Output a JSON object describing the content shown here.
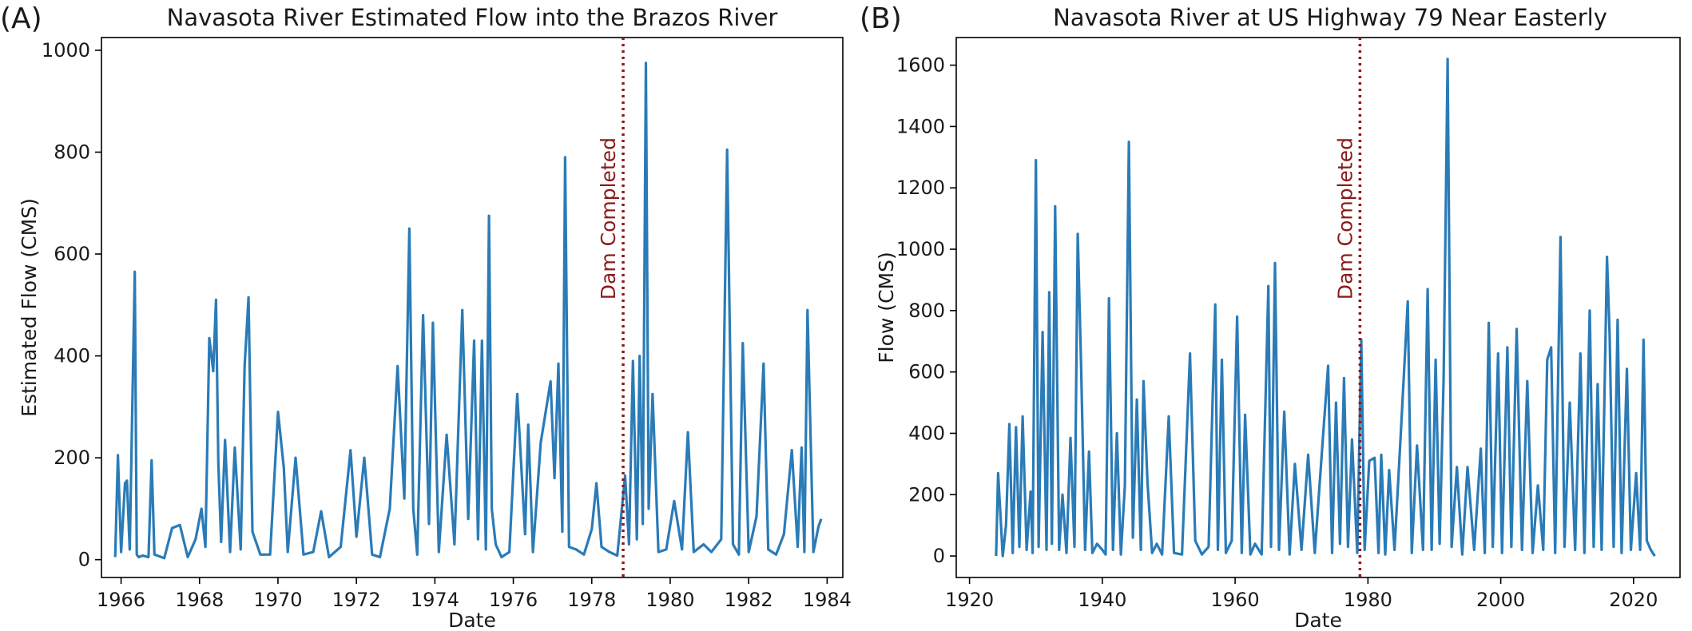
{
  "panels": [
    {
      "panel_label": "(A)",
      "colors": {
        "line": "#2a7bb7",
        "marker": "#8b1a1a"
      }
    },
    {
      "panel_label": "(B)",
      "colors": {
        "line": "#2a7bb7",
        "marker": "#8b1a1a"
      }
    }
  ],
  "chart_data": [
    {
      "type": "line",
      "title": "Navasota River Estimated Flow into the Brazos River",
      "xlabel": "Date",
      "ylabel": "Estimated Flow (CMS)",
      "xlim": [
        1965.5,
        1984.4
      ],
      "ylim": [
        -35,
        1025
      ],
      "xticks": [
        1966,
        1968,
        1970,
        1972,
        1974,
        1976,
        1978,
        1980,
        1982,
        1984
      ],
      "yticks": [
        0,
        200,
        400,
        600,
        800,
        1000
      ],
      "grid": false,
      "legend": "none",
      "annotation": {
        "text": "Dam Completed",
        "x": 1978.8
      },
      "series": [
        {
          "x": [
            1965.85,
            1965.92,
            1966.0,
            1966.1,
            1966.15,
            1966.22,
            1966.35,
            1966.4,
            1966.45,
            1966.55,
            1966.7,
            1966.78,
            1966.85,
            1967.1,
            1967.3,
            1967.5,
            1967.7,
            1967.9,
            1968.05,
            1968.15,
            1968.25,
            1968.35,
            1968.42,
            1968.48,
            1968.55,
            1968.65,
            1968.78,
            1968.9,
            1969.05,
            1969.15,
            1969.25,
            1969.35,
            1969.55,
            1969.8,
            1970.0,
            1970.15,
            1970.25,
            1970.45,
            1970.65,
            1970.9,
            1971.1,
            1971.3,
            1971.6,
            1971.85,
            1972.0,
            1972.2,
            1972.4,
            1972.6,
            1972.85,
            1973.05,
            1973.22,
            1973.35,
            1973.45,
            1973.55,
            1973.7,
            1973.85,
            1973.95,
            1974.1,
            1974.3,
            1974.5,
            1974.7,
            1974.85,
            1975.0,
            1975.1,
            1975.2,
            1975.3,
            1975.38,
            1975.45,
            1975.55,
            1975.7,
            1975.9,
            1976.1,
            1976.3,
            1976.38,
            1976.5,
            1976.7,
            1976.95,
            1977.05,
            1977.15,
            1977.25,
            1977.32,
            1977.42,
            1977.6,
            1977.8,
            1978.0,
            1978.12,
            1978.25,
            1978.45,
            1978.65,
            1978.85,
            1978.95,
            1979.05,
            1979.15,
            1979.22,
            1979.3,
            1979.38,
            1979.45,
            1979.55,
            1979.7,
            1979.9,
            1980.1,
            1980.3,
            1980.45,
            1980.6,
            1980.85,
            1981.05,
            1981.3,
            1981.45,
            1981.6,
            1981.75,
            1981.85,
            1982.0,
            1982.2,
            1982.38,
            1982.5,
            1982.7,
            1982.9,
            1983.1,
            1983.25,
            1983.35,
            1983.42,
            1983.5,
            1983.65,
            1983.78,
            1983.85
          ],
          "y": [
            5,
            205,
            15,
            150,
            155,
            20,
            565,
            10,
            5,
            8,
            5,
            195,
            10,
            3,
            62,
            68,
            5,
            40,
            100,
            25,
            435,
            370,
            510,
            190,
            35,
            235,
            15,
            220,
            20,
            380,
            515,
            55,
            10,
            10,
            290,
            180,
            15,
            200,
            10,
            15,
            95,
            5,
            25,
            215,
            45,
            200,
            10,
            5,
            100,
            380,
            120,
            650,
            100,
            10,
            480,
            70,
            465,
            15,
            245,
            30,
            490,
            80,
            430,
            40,
            430,
            20,
            675,
            100,
            30,
            5,
            15,
            325,
            50,
            265,
            15,
            230,
            350,
            160,
            385,
            55,
            790,
            25,
            20,
            10,
            60,
            150,
            25,
            15,
            8,
            165,
            30,
            390,
            40,
            400,
            70,
            975,
            100,
            325,
            15,
            20,
            115,
            20,
            250,
            15,
            30,
            15,
            40,
            805,
            30,
            10,
            425,
            15,
            85,
            385,
            20,
            10,
            50,
            215,
            25,
            220,
            15,
            490,
            15,
            65,
            80
          ]
        }
      ]
    },
    {
      "type": "line",
      "title": "Navasota River at US Highway 79 Near Easterly",
      "xlabel": "Date",
      "ylabel": "Flow (CMS)",
      "xlim": [
        1918,
        2027
      ],
      "ylim": [
        -70,
        1690
      ],
      "xticks": [
        1920,
        1940,
        1960,
        1980,
        2000,
        2020
      ],
      "yticks": [
        0,
        200,
        400,
        600,
        800,
        1000,
        1200,
        1400,
        1600
      ],
      "grid": false,
      "legend": "none",
      "annotation": {
        "text": "Dam Completed",
        "x": 1978.8
      },
      "series": [
        {
          "x": [
            1924.0,
            1924.3,
            1925.0,
            1925.5,
            1926.0,
            1926.5,
            1927.0,
            1927.5,
            1928.0,
            1928.6,
            1929.2,
            1929.5,
            1930.0,
            1930.4,
            1931.0,
            1931.6,
            1932.0,
            1932.4,
            1932.9,
            1933.5,
            1934.0,
            1934.6,
            1935.2,
            1935.8,
            1936.3,
            1936.8,
            1937.4,
            1938.0,
            1938.5,
            1939.2,
            1940.0,
            1940.5,
            1941.0,
            1941.6,
            1942.2,
            1942.8,
            1943.4,
            1944.0,
            1944.6,
            1945.2,
            1945.8,
            1946.2,
            1946.8,
            1947.5,
            1948.2,
            1949.0,
            1950.0,
            1950.8,
            1952.0,
            1953.2,
            1954.0,
            1955.0,
            1956.0,
            1957.0,
            1957.4,
            1958.0,
            1958.6,
            1959.5,
            1960.3,
            1961.0,
            1961.5,
            1962.3,
            1963.0,
            1964.0,
            1965.0,
            1965.4,
            1966.0,
            1966.6,
            1967.4,
            1968.2,
            1969.0,
            1970.0,
            1971.0,
            1972.0,
            1973.0,
            1974.0,
            1974.6,
            1975.2,
            1975.8,
            1976.4,
            1977.0,
            1977.6,
            1978.4,
            1979.0,
            1979.5,
            1980.2,
            1981.0,
            1981.6,
            1982.0,
            1982.6,
            1983.2,
            1984.0,
            1985.0,
            1986.0,
            1986.6,
            1987.4,
            1988.3,
            1989.0,
            1989.6,
            1990.2,
            1990.8,
            1991.4,
            1992.0,
            1992.6,
            1993.4,
            1994.2,
            1995.0,
            1996.0,
            1997.0,
            1997.6,
            1998.2,
            1998.8,
            1999.6,
            2000.2,
            2001.0,
            2001.6,
            2002.4,
            2003.2,
            2004.0,
            2004.8,
            2005.6,
            2006.4,
            2007.0,
            2007.6,
            2008.2,
            2009.0,
            2009.6,
            2010.4,
            2011.2,
            2012.0,
            2012.6,
            2013.4,
            2014.0,
            2014.6,
            2015.2,
            2016.0,
            2016.4,
            2017.0,
            2017.6,
            2018.2,
            2019.0,
            2019.6,
            2020.4,
            2021.0,
            2021.5,
            2022.0,
            2022.6,
            2023.2
          ],
          "y": [
            0,
            270,
            0,
            100,
            430,
            10,
            420,
            30,
            455,
            20,
            210,
            10,
            1290,
            30,
            730,
            20,
            860,
            40,
            1140,
            20,
            200,
            10,
            385,
            30,
            1050,
            620,
            20,
            340,
            10,
            40,
            20,
            5,
            840,
            20,
            400,
            5,
            230,
            1350,
            60,
            510,
            20,
            570,
            240,
            10,
            40,
            5,
            455,
            10,
            5,
            660,
            50,
            5,
            30,
            820,
            20,
            640,
            10,
            50,
            780,
            10,
            460,
            5,
            40,
            5,
            880,
            30,
            955,
            20,
            470,
            5,
            300,
            20,
            330,
            10,
            320,
            620,
            10,
            500,
            40,
            580,
            30,
            380,
            10,
            705,
            20,
            310,
            320,
            10,
            330,
            5,
            280,
            20,
            420,
            830,
            10,
            360,
            20,
            870,
            20,
            640,
            40,
            580,
            1620,
            30,
            290,
            5,
            290,
            20,
            350,
            10,
            760,
            30,
            660,
            10,
            680,
            30,
            740,
            20,
            570,
            10,
            230,
            20,
            640,
            680,
            10,
            1040,
            30,
            500,
            20,
            660,
            10,
            800,
            30,
            560,
            20,
            975,
            720,
            30,
            770,
            10,
            610,
            20,
            270,
            20,
            705,
            50,
            20,
            0
          ]
        }
      ]
    }
  ]
}
